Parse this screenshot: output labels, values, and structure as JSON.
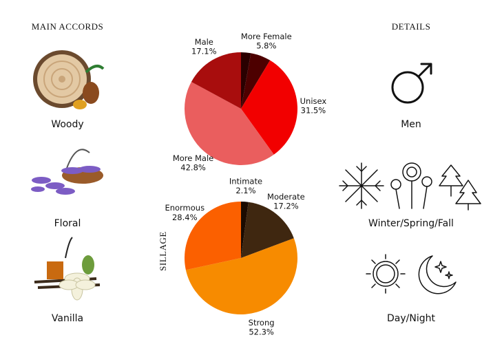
{
  "header": {
    "left": "MAIN ACCORDS",
    "right": "DETAILS"
  },
  "accords": [
    "Woody",
    "Floral",
    "Vanilla"
  ],
  "details": [
    "Men",
    "Winter/Spring/Fall",
    "Day/Night"
  ],
  "chart_data": [
    {
      "type": "pie",
      "categories": [
        null,
        "More Female",
        "Unisex",
        "More Male",
        "Male"
      ],
      "values": [
        2.8,
        5.8,
        31.5,
        42.8,
        17.1
      ],
      "value_labels": [
        null,
        "5.8%",
        "31.5%",
        "42.8%",
        "17.1%"
      ],
      "colors": [
        "#2a0000",
        "#4d0000",
        "#f20000",
        "#ea5e5e",
        "#a80d0d"
      ]
    },
    {
      "type": "pie",
      "title": "SILLAGE",
      "categories": [
        "Intimate",
        "Moderate",
        "Strong",
        "Enormous"
      ],
      "values": [
        2.1,
        17.2,
        52.3,
        28.4
      ],
      "value_labels": [
        "2.1%",
        "17.2%",
        "52.3%",
        "28.4%"
      ],
      "colors": [
        "#1c0b00",
        "#3f2710",
        "#f78b00",
        "#fb6000"
      ]
    }
  ]
}
